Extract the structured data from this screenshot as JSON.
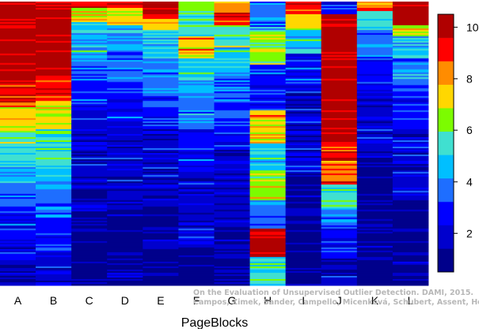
{
  "chart_data": {
    "type": "heatmap",
    "title": "",
    "xlabel": "PageBlocks",
    "ylabel": "",
    "categories": [
      "A",
      "B",
      "C",
      "D",
      "E",
      "F",
      "G",
      "H",
      "I",
      "J",
      "K",
      "L"
    ],
    "colorbar": {
      "min": 0.5,
      "max": 10.5,
      "ticks": [
        2,
        4,
        6,
        8,
        10
      ],
      "colors": [
        "#00008b",
        "#0000cd",
        "#0000ff",
        "#1e6eff",
        "#00bfff",
        "#40e0d0",
        "#7cfc00",
        "#ffd700",
        "#ff8c00",
        "#ff0000",
        "#b00000"
      ]
    },
    "columns": [
      {
        "name": "A",
        "segments": [
          [
            0,
            0.27,
            10
          ],
          [
            0.27,
            0.37,
            9
          ],
          [
            0.37,
            0.46,
            7
          ],
          [
            0.46,
            0.56,
            5
          ],
          [
            0.56,
            0.64,
            4
          ],
          [
            0.64,
            0.72,
            3
          ],
          [
            0.72,
            0.85,
            2
          ],
          [
            0.85,
            1,
            1
          ]
        ]
      },
      {
        "name": "B",
        "segments": [
          [
            0,
            0.26,
            10
          ],
          [
            0.26,
            0.35,
            9
          ],
          [
            0.35,
            0.45,
            7
          ],
          [
            0.45,
            0.58,
            5
          ],
          [
            0.58,
            0.66,
            4
          ],
          [
            0.66,
            0.76,
            3
          ],
          [
            0.76,
            0.88,
            2
          ],
          [
            0.88,
            1,
            1
          ]
        ]
      },
      {
        "name": "C",
        "segments": [
          [
            0,
            0.02,
            9
          ],
          [
            0.02,
            0.07,
            7
          ],
          [
            0.07,
            0.18,
            4
          ],
          [
            0.18,
            0.28,
            3
          ],
          [
            0.28,
            0.38,
            2
          ],
          [
            0.38,
            0.66,
            1
          ],
          [
            0.66,
            1,
            0
          ]
        ]
      },
      {
        "name": "D",
        "segments": [
          [
            0,
            0.02,
            9
          ],
          [
            0.02,
            0.08,
            7
          ],
          [
            0.08,
            0.17,
            4
          ],
          [
            0.17,
            0.28,
            3
          ],
          [
            0.28,
            0.42,
            2
          ],
          [
            0.42,
            0.7,
            1
          ],
          [
            0.7,
            1,
            0
          ]
        ]
      },
      {
        "name": "E",
        "segments": [
          [
            0,
            0.06,
            10
          ],
          [
            0.06,
            0.1,
            7
          ],
          [
            0.1,
            0.2,
            4
          ],
          [
            0.2,
            0.32,
            3
          ],
          [
            0.32,
            0.45,
            2
          ],
          [
            0.45,
            0.72,
            1
          ],
          [
            0.72,
            1,
            0
          ]
        ]
      },
      {
        "name": "F",
        "segments": [
          [
            0,
            0.03,
            6
          ],
          [
            0.03,
            0.12,
            5
          ],
          [
            0.12,
            0.2,
            7
          ],
          [
            0.2,
            0.32,
            4
          ],
          [
            0.32,
            0.45,
            3
          ],
          [
            0.45,
            0.6,
            2
          ],
          [
            0.6,
            0.85,
            1
          ],
          [
            0.85,
            1,
            0
          ]
        ]
      },
      {
        "name": "G",
        "segments": [
          [
            0,
            0.05,
            8
          ],
          [
            0.05,
            0.08,
            9
          ],
          [
            0.08,
            0.16,
            5
          ],
          [
            0.16,
            0.26,
            4
          ],
          [
            0.26,
            0.36,
            3
          ],
          [
            0.36,
            0.52,
            2
          ],
          [
            0.52,
            0.8,
            1
          ],
          [
            0.8,
            1,
            0
          ]
        ]
      },
      {
        "name": "H",
        "segments": [
          [
            0,
            0.1,
            3
          ],
          [
            0.1,
            0.22,
            6
          ],
          [
            0.22,
            0.38,
            2
          ],
          [
            0.38,
            0.5,
            7
          ],
          [
            0.5,
            0.6,
            4
          ],
          [
            0.6,
            0.7,
            6
          ],
          [
            0.7,
            0.8,
            3
          ],
          [
            0.8,
            0.9,
            10
          ],
          [
            0.9,
            1,
            5
          ]
        ]
      },
      {
        "name": "I",
        "segments": [
          [
            0,
            0.04,
            9
          ],
          [
            0.04,
            0.1,
            7
          ],
          [
            0.1,
            0.18,
            4
          ],
          [
            0.18,
            0.3,
            2
          ],
          [
            0.3,
            0.6,
            1
          ],
          [
            0.6,
            1,
            0
          ]
        ]
      },
      {
        "name": "J",
        "segments": [
          [
            0,
            0.01,
            1
          ],
          [
            0.01,
            0.04,
            2
          ],
          [
            0.04,
            0.5,
            10
          ],
          [
            0.5,
            0.56,
            9
          ],
          [
            0.56,
            0.64,
            8
          ],
          [
            0.64,
            0.72,
            5
          ],
          [
            0.72,
            0.8,
            3
          ],
          [
            0.8,
            0.9,
            2
          ],
          [
            0.9,
            1,
            1
          ]
        ]
      },
      {
        "name": "K",
        "segments": [
          [
            0,
            0.03,
            8
          ],
          [
            0.03,
            0.1,
            5
          ],
          [
            0.1,
            0.2,
            3
          ],
          [
            0.2,
            0.32,
            2
          ],
          [
            0.32,
            0.55,
            1
          ],
          [
            0.55,
            1,
            0
          ]
        ]
      },
      {
        "name": "L",
        "segments": [
          [
            0,
            0.08,
            10
          ],
          [
            0.08,
            0.12,
            7
          ],
          [
            0.12,
            0.2,
            4
          ],
          [
            0.2,
            0.3,
            3
          ],
          [
            0.3,
            0.45,
            2
          ],
          [
            0.45,
            0.7,
            1
          ],
          [
            0.7,
            1,
            0
          ]
        ]
      }
    ]
  },
  "credit": {
    "line1": "On the Evaluation of Unsupervised Outlier Detection. DAMI, 2015.",
    "line2": "Campos, Zimek, Sander, Campello, Micenková, Schubert, Assent, Houle"
  }
}
